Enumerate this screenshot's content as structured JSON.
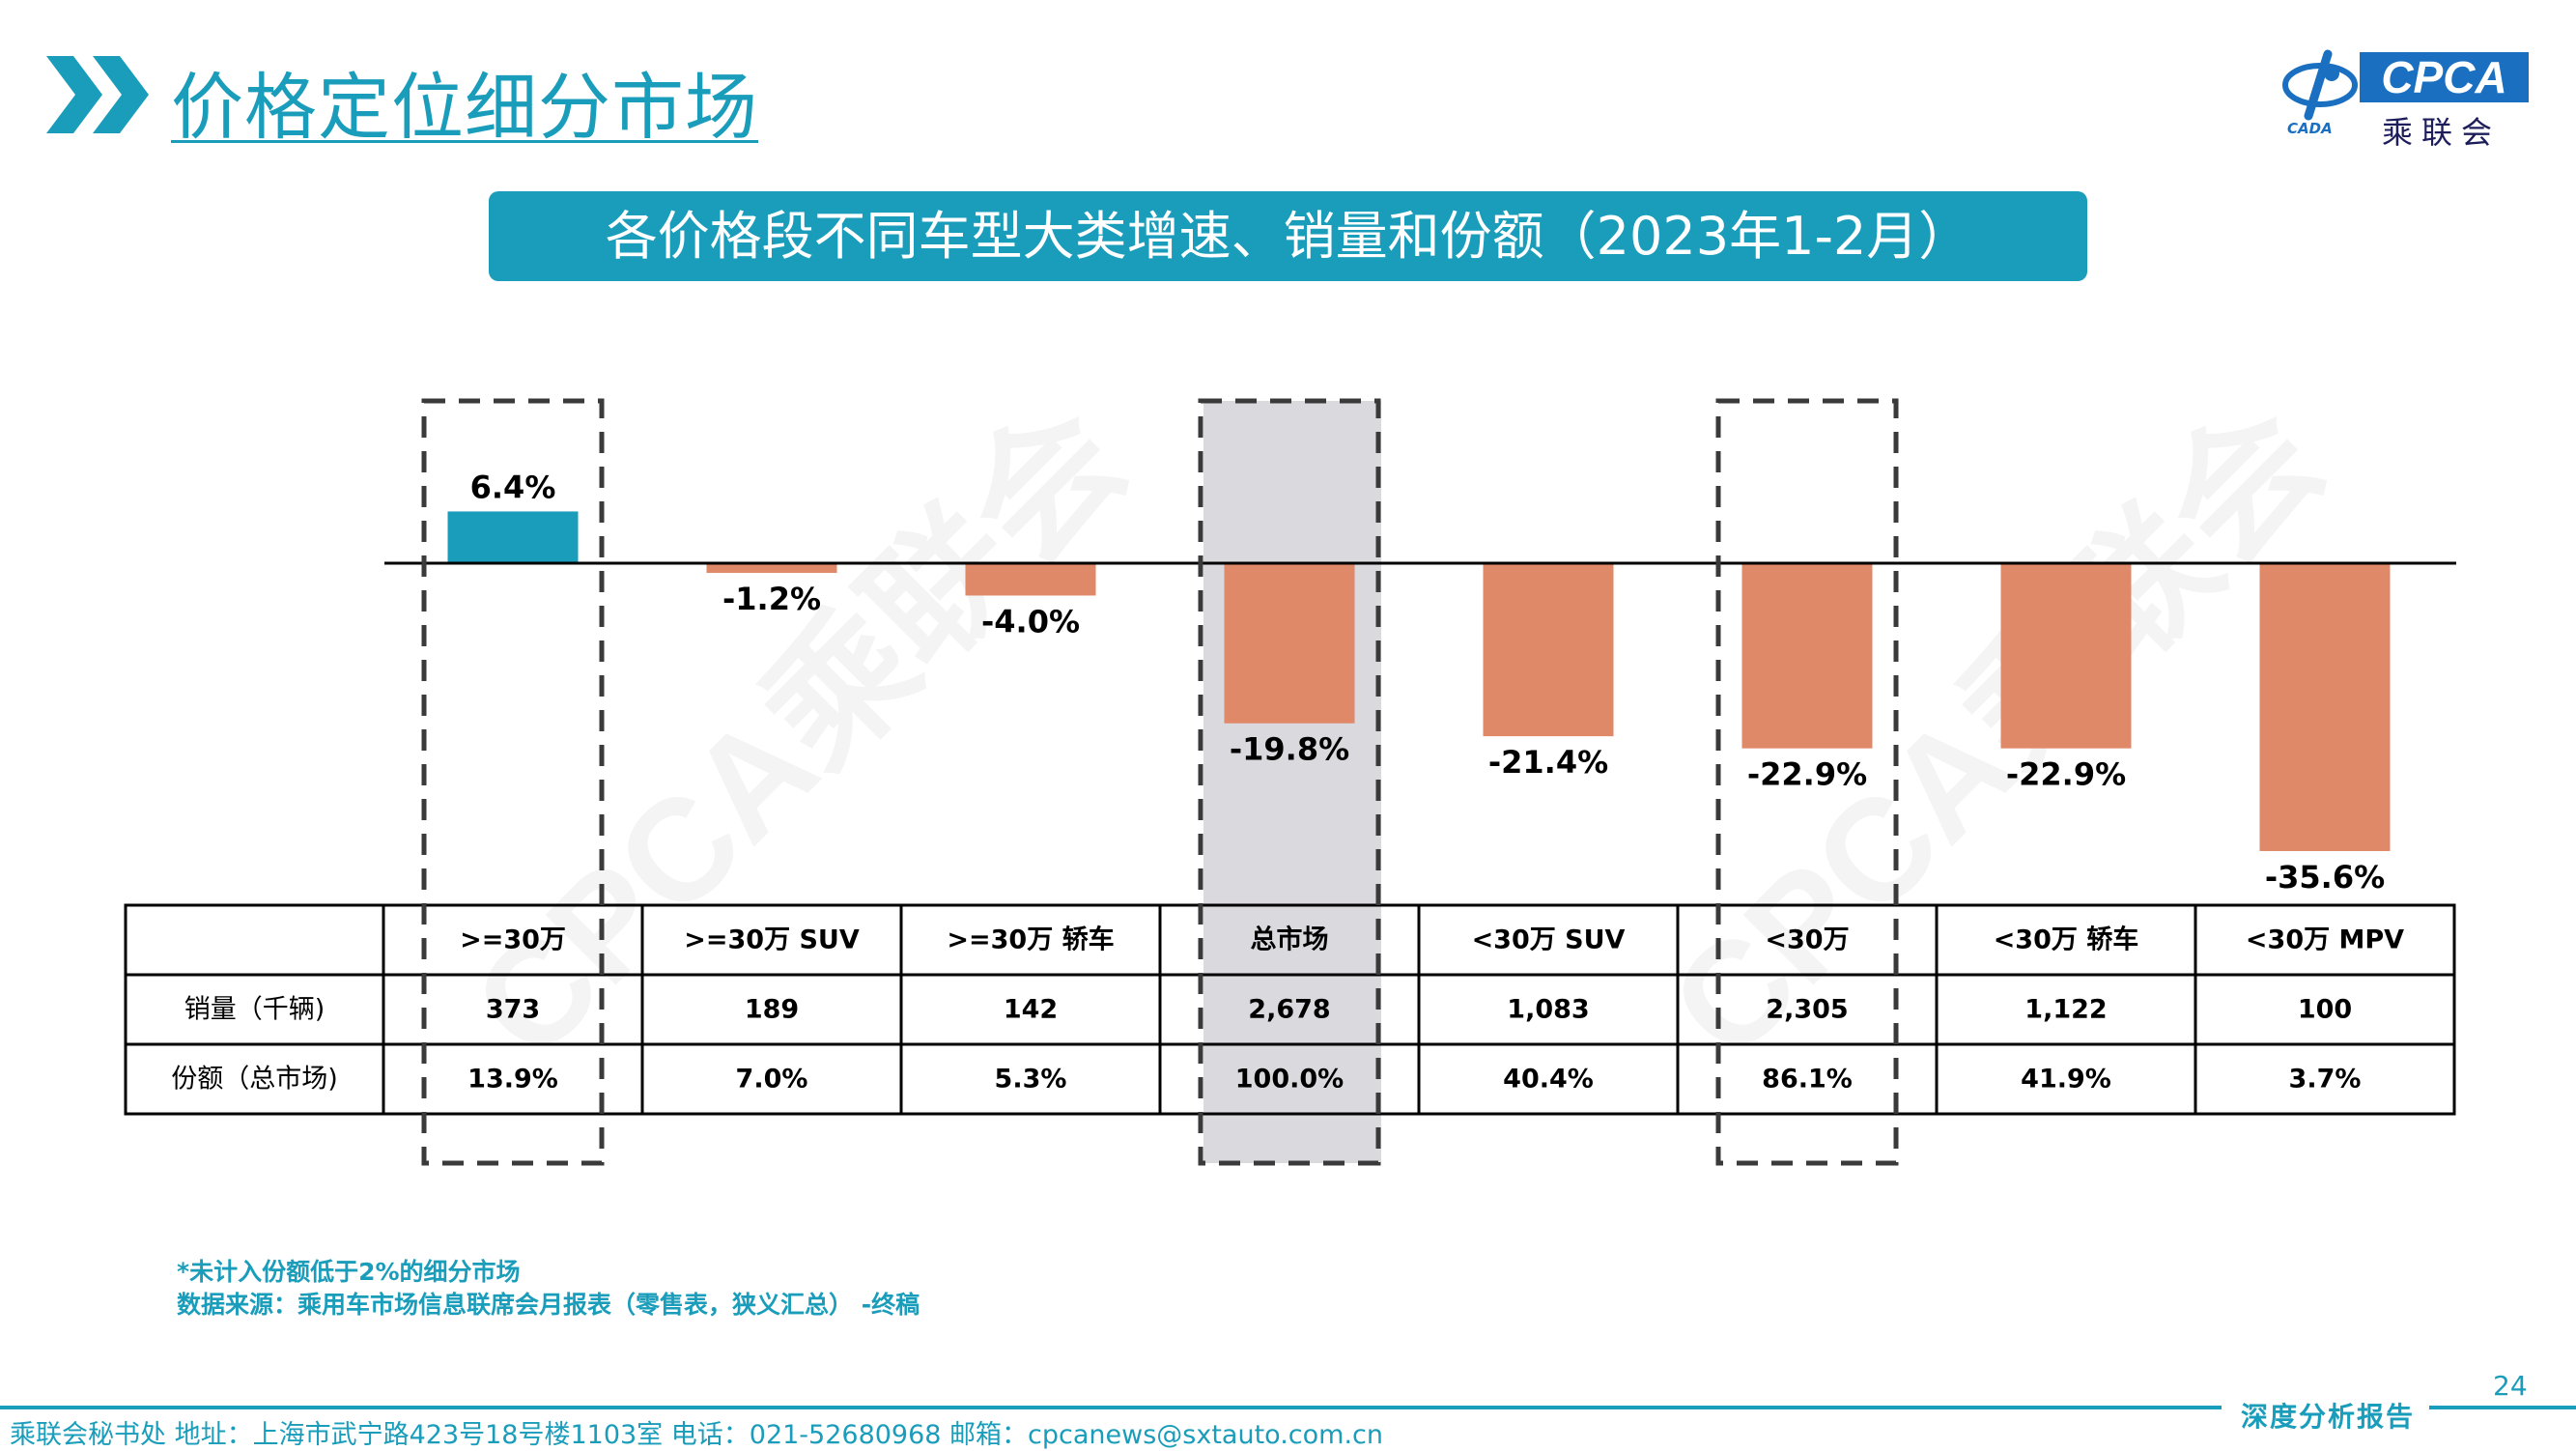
{
  "header": {
    "title": "价格定位细分市场",
    "logo_text": "CPCA",
    "logo_cn": "乘联会",
    "logo_small": "CADA"
  },
  "banner": {
    "title": "各价格段不同车型大类增速、销量和份额（2023年1-2月）"
  },
  "colors": {
    "accent": "#1a9dbb",
    "positive_bar": "#1a9dbb",
    "negative_bar": "#e08968",
    "highlight": "#d9d9de"
  },
  "chart_data": {
    "type": "bar",
    "categories": [
      ">=30万",
      ">=30万 SUV",
      ">=30万 轿车",
      "总市场",
      "<30万 SUV",
      "<30万",
      "<30万 轿车",
      "<30万 MPV"
    ],
    "series": [
      {
        "values": [
          6.4,
          -1.2,
          -4.0,
          -19.8,
          -21.4,
          -22.9,
          -22.9,
          -35.6
        ]
      }
    ],
    "value_labels": [
      "6.4%",
      "-1.2%",
      "-4.0%",
      "-19.8%",
      "-21.4%",
      "-22.9%",
      "-22.9%",
      "-35.6%"
    ],
    "unit": "%",
    "highlighted_categories": [
      ">=30万",
      "总市场",
      "<30万"
    ],
    "shaded_category": "总市场",
    "table": {
      "rows": [
        {
          "label": "销量（千辆)",
          "values": [
            "373",
            "189",
            "142",
            "2,678",
            "1,083",
            "2,305",
            "1,122",
            "100"
          ]
        },
        {
          "label": "份额（总市场)",
          "values": [
            "13.9%",
            "7.0%",
            "5.3%",
            "100.0%",
            "40.4%",
            "86.1%",
            "41.9%",
            "3.7%"
          ]
        }
      ]
    }
  },
  "watermark": "CPCA乘联会",
  "notes": {
    "line1": "*未计入份额低于2%的细分市场",
    "line2": "数据来源：乘用车市场信息联席会月报表（零售表，狭义汇总） -终稿"
  },
  "footer": {
    "text": "乘联会秘书处   地址：上海市武宁路423号18号楼1103室  电话：021-52680968   邮箱：cpcanews@sxtauto.com.cn",
    "page_number": "24",
    "report_label": "深度分析报告"
  }
}
